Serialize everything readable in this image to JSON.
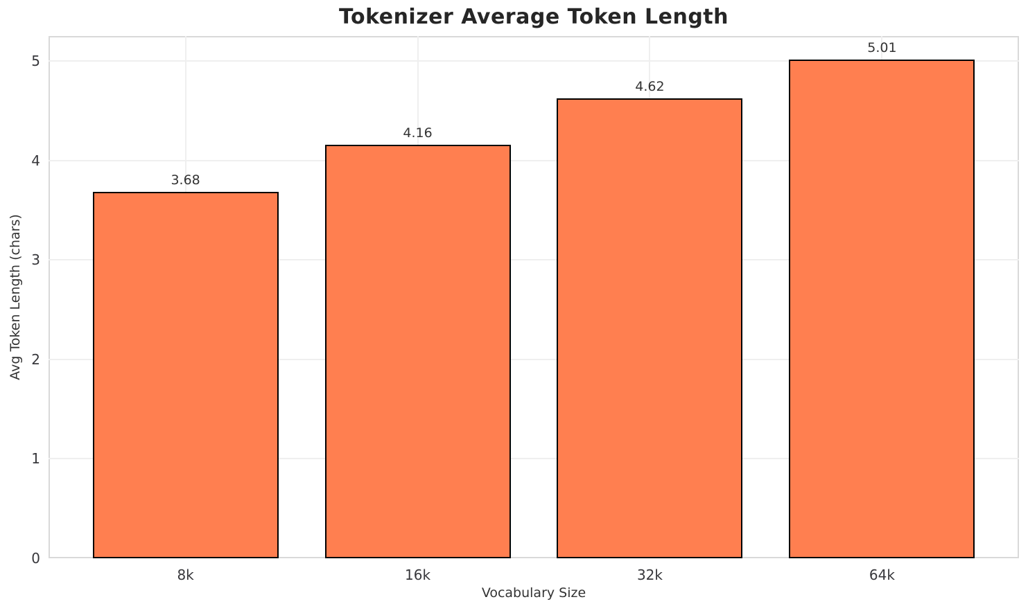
{
  "chart_data": {
    "type": "bar",
    "title": "Tokenizer Average Token Length",
    "xlabel": "Vocabulary Size",
    "ylabel": "Avg Token Length (chars)",
    "categories": [
      "8k",
      "16k",
      "32k",
      "64k"
    ],
    "values": [
      3.68,
      4.16,
      4.62,
      5.01
    ],
    "value_labels": [
      "3.68",
      "4.16",
      "4.62",
      "5.01"
    ],
    "yticks": [
      0,
      1,
      2,
      3,
      4,
      5
    ],
    "ytick_labels": [
      "0",
      "1",
      "2",
      "3",
      "4",
      "5"
    ],
    "ylim": [
      0,
      5.25
    ],
    "grid": true,
    "legend": "none",
    "bar_color": "#FF7F50",
    "bar_edge_color": "#000000",
    "background_color": "#FFFFFF",
    "grid_color": "#EFEFEF",
    "spine_color": "#D9D9D9",
    "title_color": "#262626",
    "text_color": "#333333"
  }
}
